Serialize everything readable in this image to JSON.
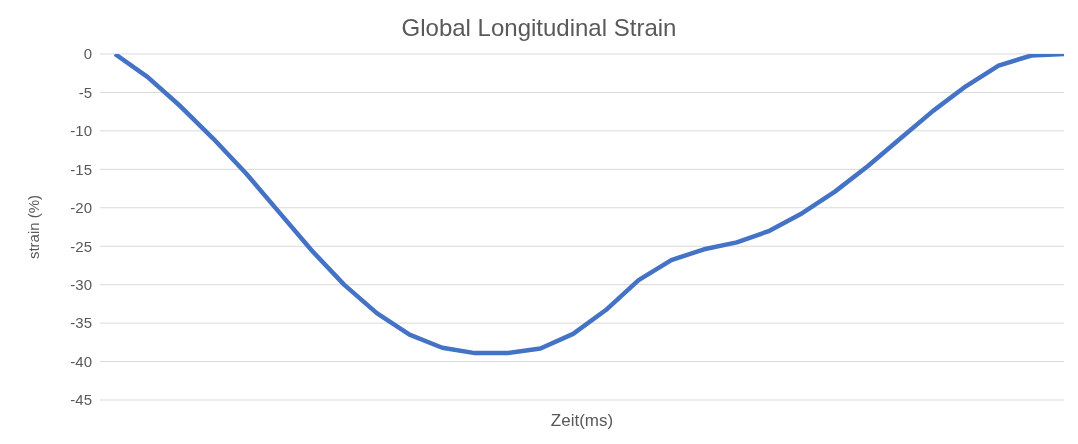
{
  "chart_data": {
    "type": "line",
    "title": "Global Longitudinal Strain",
    "xlabel": "Zeit(ms)",
    "ylabel": "strain (%)",
    "categories": [
      null,
      null,
      null,
      null,
      null,
      null,
      null,
      null,
      null,
      null,
      null,
      null,
      null,
      null,
      null,
      null,
      null,
      null,
      null,
      null,
      null,
      null,
      null,
      null,
      null,
      null,
      null,
      null,
      null,
      null
    ],
    "series": [
      {
        "color": "#4472c4",
        "values": [
          0,
          -3,
          -6.8,
          -11,
          -15.5,
          -20.5,
          -25.5,
          -30,
          -33.7,
          -36.5,
          -38.2,
          -38.9,
          -38.9,
          -38.3,
          -36.4,
          -33.3,
          -29.4,
          -26.8,
          -25.4,
          -24.5,
          -23,
          -20.7,
          -17.9,
          -14.6,
          -11,
          -7.4,
          -4.2,
          -1.5,
          -0.2,
          0
        ]
      }
    ],
    "ylim": [
      -45,
      0
    ],
    "yticks": [
      -45,
      -40,
      -35,
      -30,
      -25,
      -20,
      -15,
      -10,
      -5,
      0
    ],
    "grid": "y",
    "legend": false,
    "marker": "none",
    "line_style": "solid"
  }
}
